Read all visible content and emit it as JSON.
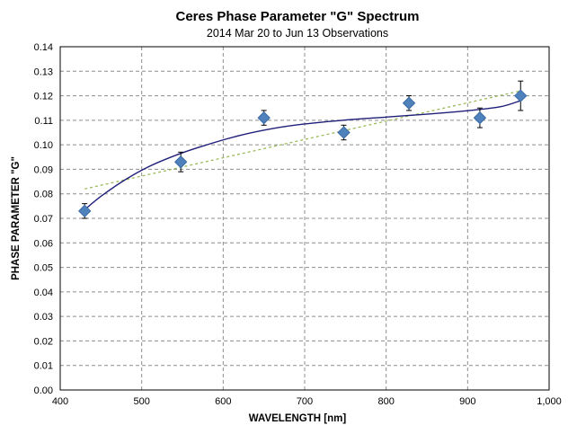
{
  "chart_data": {
    "type": "scatter",
    "title": "Ceres Phase Parameter \"G\" Spectrum",
    "subtitle": "2014  Mar 20 to Jun 13 Observations",
    "xlabel": "WAVELENGTH [nm]",
    "ylabel": "PHASE PARAMETER  \"G\"",
    "xlim": [
      400,
      1000
    ],
    "ylim": [
      0,
      0.14
    ],
    "x_ticks": [
      400,
      500,
      600,
      700,
      800,
      900,
      1000
    ],
    "x_tick_labels": [
      "400",
      "500",
      "600",
      "700",
      "800",
      "900",
      "1,000"
    ],
    "y_ticks": [
      0,
      0.01,
      0.02,
      0.03,
      0.04,
      0.05,
      0.06,
      0.07,
      0.08,
      0.09,
      0.1,
      0.11,
      0.12,
      0.13,
      0.14
    ],
    "y_tick_labels": [
      "0.00",
      "0.01",
      "0.02",
      "0.03",
      "0.04",
      "0.05",
      "0.06",
      "0.07",
      "0.08",
      "0.09",
      "0.10",
      "0.11",
      "0.12",
      "0.13",
      "0.14"
    ],
    "grid": true,
    "series": [
      {
        "x": [
          430,
          548,
          650,
          748,
          828,
          915,
          965
        ],
        "y": [
          0.073,
          0.093,
          0.111,
          0.105,
          0.117,
          0.111,
          0.12
        ],
        "err_low": [
          0.07,
          0.089,
          0.108,
          0.102,
          0.114,
          0.107,
          0.114
        ],
        "err_high": [
          0.076,
          0.097,
          0.114,
          0.108,
          0.12,
          0.115,
          0.126
        ],
        "marker": "diamond",
        "color": "#4f81bd"
      }
    ],
    "fit_curve": {
      "x": [
        430,
        450,
        480,
        510,
        548,
        580,
        620,
        660,
        700,
        750,
        800,
        850,
        900,
        940,
        965
      ],
      "y": [
        0.0735,
        0.079,
        0.0858,
        0.0913,
        0.0965,
        0.1,
        0.1038,
        0.1066,
        0.1085,
        0.1101,
        0.1113,
        0.1125,
        0.1139,
        0.1155,
        0.118
      ],
      "color": "#1f1f7a"
    },
    "linear_trend": {
      "x": [
        430,
        965
      ],
      "y": [
        0.082,
        0.122
      ],
      "color": "#9bbb59"
    }
  }
}
